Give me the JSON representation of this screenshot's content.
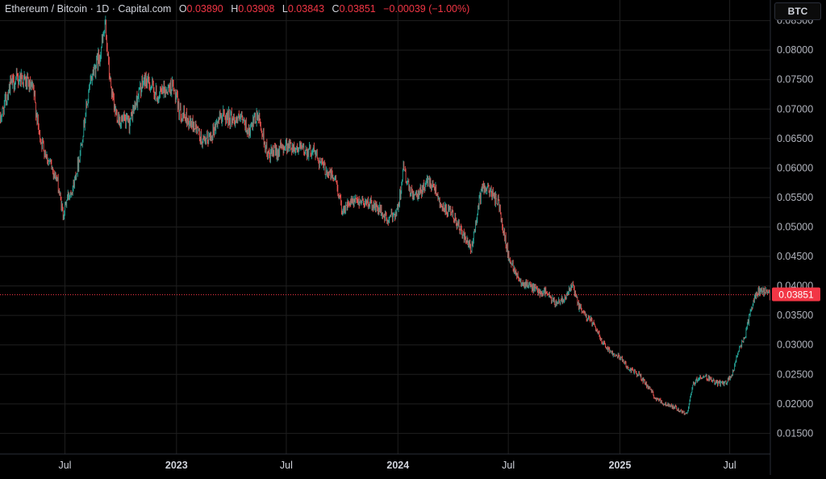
{
  "header": {
    "symbol": "Ethereum / Bitcoin · 1D · Capital.com",
    "open_label": "O",
    "open": "0.03890",
    "high_label": "H",
    "high": "0.03908",
    "low_label": "L",
    "low": "0.03843",
    "close_label": "C",
    "close": "0.03851",
    "change": "−0.00039 (−1.00%)"
  },
  "scale_unit": "BTC",
  "last_price_tag": "0.03851",
  "colors": {
    "up": "#26a69a",
    "down": "#ef5350",
    "grid": "#1f1f1f",
    "price_line": "#f23645"
  },
  "chart_data": {
    "type": "line",
    "title": "Ethereum / Bitcoin · 1D · Capital.com",
    "xlabel": "",
    "ylabel": "",
    "ylim": [
      0.0115,
      0.0885
    ],
    "y_ticks": [
      "0.01500",
      "0.02000",
      "0.02500",
      "0.03000",
      "0.03500",
      "0.04000",
      "0.04500",
      "0.05000",
      "0.05500",
      "0.06000",
      "0.06500",
      "0.07000",
      "0.07500",
      "0.08000",
      "0.08500"
    ],
    "x_ticks": [
      "Jul",
      "2023",
      "Jul",
      "2024",
      "Jul",
      "2025",
      "Jul"
    ],
    "x_tick_dates": [
      "2022-07-01",
      "2023-01-01",
      "2023-07-01",
      "2024-01-01",
      "2024-07-01",
      "2025-01-01",
      "2025-07-01"
    ],
    "x_range": [
      "2022-03-16",
      "2025-09-06"
    ],
    "grid": true,
    "legend": "none",
    "last_value": 0.03851,
    "series": [
      {
        "x": [
          "2022-03-16",
          "2022-04-01",
          "2022-04-20",
          "2022-05-10",
          "2022-05-20",
          "2022-06-01",
          "2022-06-18",
          "2022-06-28",
          "2022-07-05",
          "2022-07-15",
          "2022-07-25",
          "2022-08-05",
          "2022-08-15",
          "2022-08-27",
          "2022-09-06",
          "2022-09-12",
          "2022-09-20",
          "2022-10-01",
          "2022-10-15",
          "2022-11-01",
          "2022-11-10",
          "2022-11-20",
          "2022-12-01",
          "2022-12-10",
          "2022-12-25",
          "2023-01-05",
          "2023-01-15",
          "2023-02-01",
          "2023-02-15",
          "2023-03-01",
          "2023-03-15",
          "2023-04-01",
          "2023-04-20",
          "2023-05-01",
          "2023-05-15",
          "2023-06-01",
          "2023-06-18",
          "2023-07-01",
          "2023-07-15",
          "2023-08-01",
          "2023-08-15",
          "2023-09-01",
          "2023-09-20",
          "2023-10-01",
          "2023-10-15",
          "2023-11-01",
          "2023-11-15",
          "2023-12-01",
          "2023-12-15",
          "2024-01-01",
          "2024-01-10",
          "2024-01-20",
          "2024-02-01",
          "2024-02-20",
          "2024-03-01",
          "2024-03-15",
          "2024-04-01",
          "2024-04-15",
          "2024-05-01",
          "2024-05-15",
          "2024-05-22",
          "2024-06-01",
          "2024-06-15",
          "2024-07-01",
          "2024-07-20",
          "2024-08-05",
          "2024-08-20",
          "2024-09-01",
          "2024-09-15",
          "2024-10-01",
          "2024-10-15",
          "2024-10-25",
          "2024-11-05",
          "2024-11-15",
          "2024-12-01",
          "2024-12-15",
          "2025-01-01",
          "2025-01-15",
          "2025-02-01",
          "2025-02-15",
          "2025-03-01",
          "2025-03-15",
          "2025-04-01",
          "2025-04-15",
          "2025-04-22",
          "2025-05-01",
          "2025-05-10",
          "2025-05-25",
          "2025-06-10",
          "2025-06-25",
          "2025-07-05",
          "2025-07-15",
          "2025-07-25",
          "2025-08-05",
          "2025-08-15",
          "2025-08-25",
          "2025-09-06"
        ],
        "y": [
          0.068,
          0.074,
          0.0755,
          0.073,
          0.0655,
          0.062,
          0.058,
          0.052,
          0.055,
          0.057,
          0.062,
          0.07,
          0.076,
          0.079,
          0.084,
          0.076,
          0.07,
          0.068,
          0.0675,
          0.073,
          0.075,
          0.074,
          0.072,
          0.073,
          0.074,
          0.07,
          0.0685,
          0.067,
          0.064,
          0.066,
          0.069,
          0.0685,
          0.068,
          0.066,
          0.069,
          0.062,
          0.063,
          0.064,
          0.0635,
          0.063,
          0.063,
          0.06,
          0.058,
          0.053,
          0.054,
          0.0545,
          0.054,
          0.053,
          0.051,
          0.053,
          0.06,
          0.056,
          0.055,
          0.058,
          0.057,
          0.053,
          0.052,
          0.049,
          0.046,
          0.055,
          0.057,
          0.056,
          0.054,
          0.045,
          0.041,
          0.04,
          0.039,
          0.039,
          0.037,
          0.038,
          0.04,
          0.0365,
          0.035,
          0.034,
          0.031,
          0.029,
          0.028,
          0.026,
          0.025,
          0.023,
          0.021,
          0.02,
          0.0195,
          0.0185,
          0.0185,
          0.023,
          0.0245,
          0.0245,
          0.0235,
          0.0235,
          0.025,
          0.029,
          0.031,
          0.036,
          0.039,
          0.039,
          0.0385
        ]
      }
    ]
  }
}
